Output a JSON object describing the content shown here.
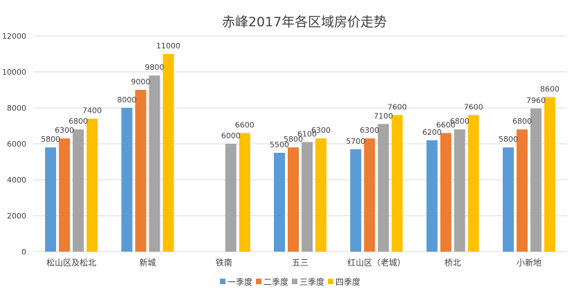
{
  "chart_data": {
    "type": "bar",
    "title": "赤峰2017年各区域房价走势",
    "xlabel": "",
    "ylabel": "",
    "ylim": [
      0,
      12000
    ],
    "yticks": [
      "0",
      "2000",
      "4000",
      "6000",
      "8000",
      "10000",
      "12000"
    ],
    "grid": true,
    "legend_position": "bottom",
    "categories": [
      "松山区及松北",
      "新城",
      "铁南",
      "五三",
      "红山区（老城）",
      "桥北",
      "小新地"
    ],
    "series": [
      {
        "name": "一季度",
        "color": "#5B9BD5",
        "values": [
          5800,
          8000,
          null,
          5500,
          5700,
          6200,
          5800
        ]
      },
      {
        "name": "二季度",
        "color": "#ED7D31",
        "values": [
          6300,
          9000,
          null,
          5800,
          6300,
          6600,
          6800
        ]
      },
      {
        "name": "三季度",
        "color": "#A5A5A5",
        "values": [
          6800,
          9800,
          6000,
          6100,
          7100,
          6800,
          7960
        ]
      },
      {
        "name": "四季度",
        "color": "#FFC000",
        "values": [
          7400,
          11000,
          6600,
          6300,
          7600,
          7600,
          8600
        ]
      }
    ]
  }
}
